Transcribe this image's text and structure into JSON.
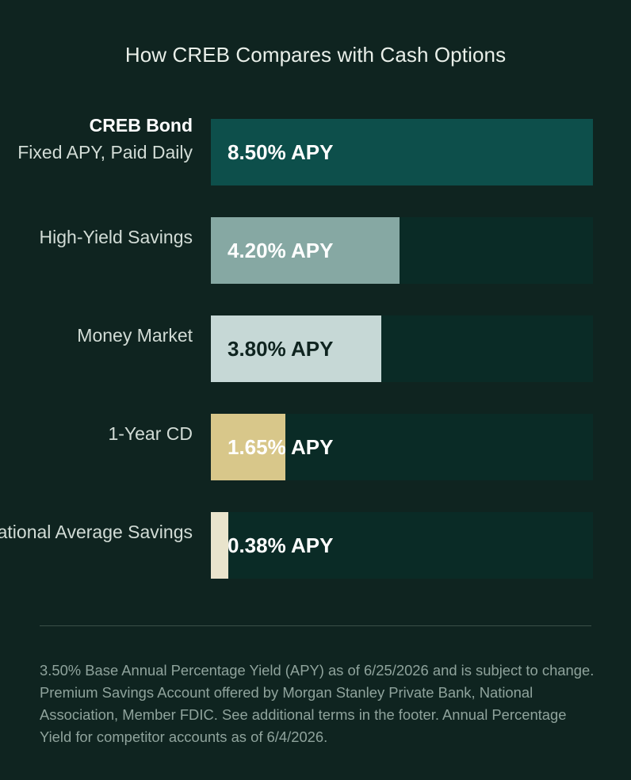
{
  "chart_data": {
    "type": "bar",
    "title": "How CREB Compares with Cash Options",
    "unit": "% APY",
    "xlim": [
      0,
      8.5
    ],
    "bars": [
      {
        "label_strong": "CREB Bond",
        "label": "Fixed APY, Paid Daily",
        "value": 8.5,
        "value_label": "8.50% APY",
        "color": "#0d4f4b",
        "text_color": "#ffffff"
      },
      {
        "label_strong": "",
        "label": "High-Yield Savings",
        "value": 4.2,
        "value_label": "4.20% APY",
        "color": "#86a8a3",
        "text_color": "#ffffff"
      },
      {
        "label_strong": "",
        "label": "Money Market",
        "value": 3.8,
        "value_label": "3.80% APY",
        "color": "#c6d8d6",
        "text_color": "#0f2420"
      },
      {
        "label_strong": "",
        "label": "1-Year CD",
        "value": 1.65,
        "value_label": "1.65% APY",
        "color": "#d8c78a",
        "text_color": "#ffffff"
      },
      {
        "label_strong": "",
        "label": "National Average Savings",
        "value": 0.38,
        "value_label": "0.38% APY",
        "color": "#e9e4cc",
        "text_color": "#ffffff"
      }
    ]
  },
  "footnote": "3.50% Base Annual Percentage Yield (APY) as of 6/25/2026 and is subject to change. Premium Savings Account offered by Morgan Stanley Private Bank, National Association, Member FDIC. See additional terms in the footer. Annual Percentage Yield for competitor accounts as of 6/4/2026."
}
